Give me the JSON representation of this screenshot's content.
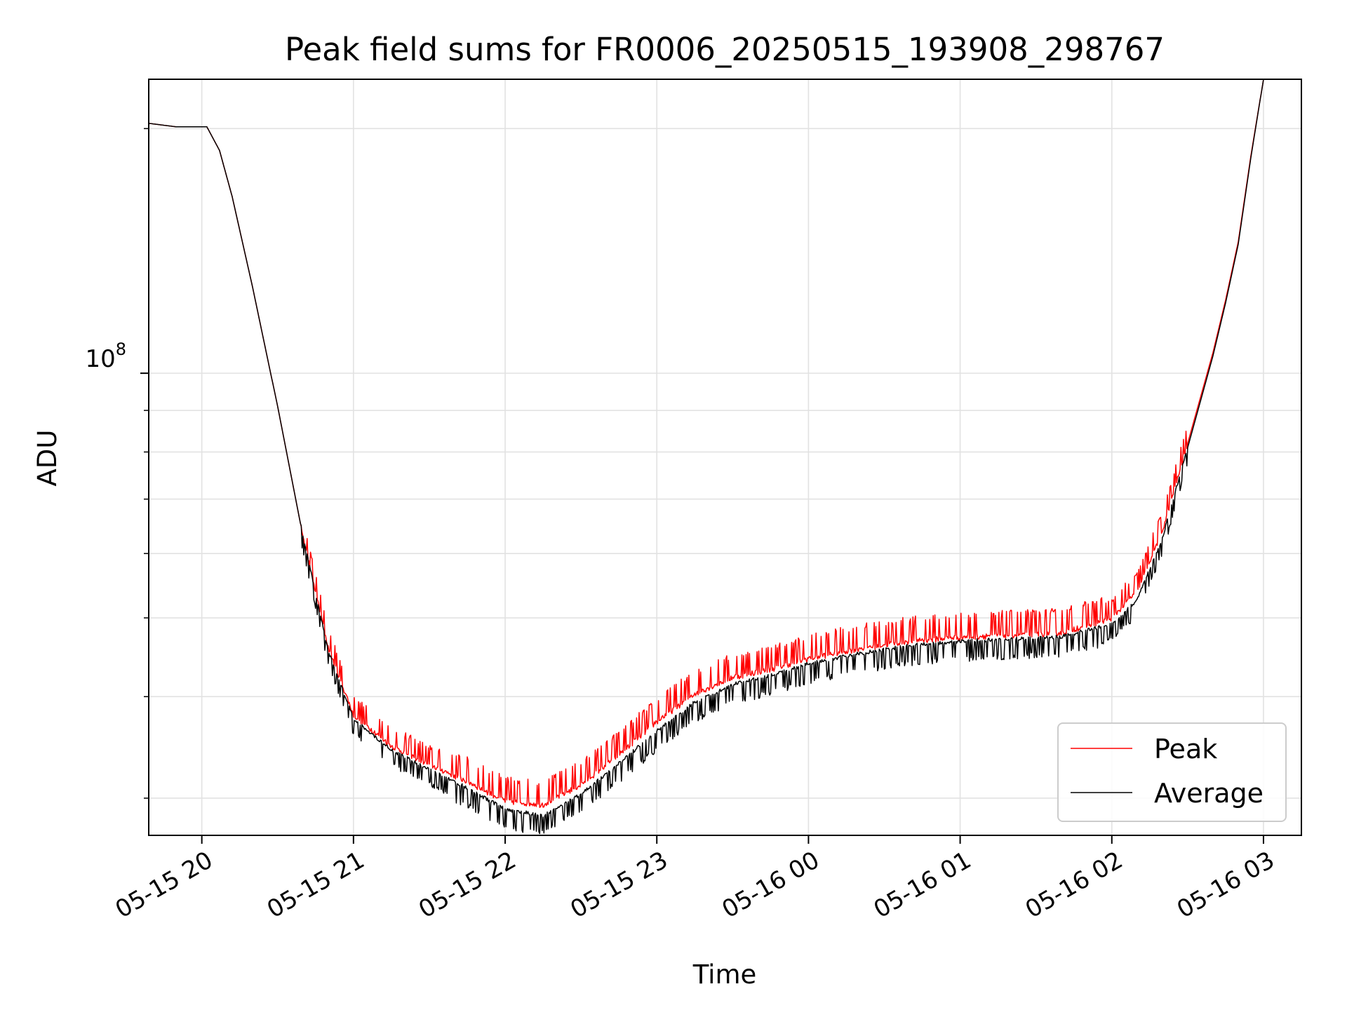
{
  "chart_data": {
    "type": "line",
    "title": "Peak field sums for FR0006_20250515_193908_298767",
    "xlabel": "Time",
    "ylabel": "ADU",
    "y_scale": "log",
    "y_tick_base": "10",
    "y_tick_exponent": "8",
    "y_major_tick": 100000000,
    "y_minor_ticks": [
      30000000,
      40000000,
      50000000,
      60000000,
      70000000,
      80000000,
      90000000,
      200000000
    ],
    "ylim": [
      27000000,
      230000000
    ],
    "xlim": [
      "2025-05-15 19:39",
      "2025-05-16 03:15"
    ],
    "x_ticks": [
      {
        "t": "2025-05-15 20:00",
        "label": "05-15 20"
      },
      {
        "t": "2025-05-15 21:00",
        "label": "05-15 21"
      },
      {
        "t": "2025-05-15 22:00",
        "label": "05-15 22"
      },
      {
        "t": "2025-05-15 23:00",
        "label": "05-15 23"
      },
      {
        "t": "2025-05-16 00:00",
        "label": "05-16 00"
      },
      {
        "t": "2025-05-16 01:00",
        "label": "05-16 01"
      },
      {
        "t": "2025-05-16 02:00",
        "label": "05-16 02"
      },
      {
        "t": "2025-05-16 03:00",
        "label": "05-16 03"
      }
    ],
    "grid": true,
    "legend_position": "lower right",
    "series": [
      {
        "name": "Peak",
        "color": "#ff0000",
        "noise": 0.05,
        "x": [
          "2025-05-15 19:39",
          "2025-05-15 19:50",
          "2025-05-15 20:02",
          "2025-05-15 20:07",
          "2025-05-15 20:12",
          "2025-05-15 20:20",
          "2025-05-15 20:30",
          "2025-05-15 20:40",
          "2025-05-15 20:50",
          "2025-05-15 21:00",
          "2025-05-15 21:15",
          "2025-05-15 21:30",
          "2025-05-15 21:45",
          "2025-05-15 22:00",
          "2025-05-15 22:15",
          "2025-05-15 22:30",
          "2025-05-15 22:45",
          "2025-05-15 23:00",
          "2025-05-15 23:15",
          "2025-05-15 23:30",
          "2025-05-15 23:45",
          "2025-05-16 00:00",
          "2025-05-16 00:20",
          "2025-05-16 00:40",
          "2025-05-16 01:00",
          "2025-05-16 01:20",
          "2025-05-16 01:40",
          "2025-05-16 02:00",
          "2025-05-16 02:10",
          "2025-05-16 02:20",
          "2025-05-16 02:30",
          "2025-05-16 02:40",
          "2025-05-16 02:45",
          "2025-05-16 02:50",
          "2025-05-16 02:55",
          "2025-05-16 03:00",
          "2025-05-16 03:15"
        ],
        "y": [
          203000000,
          201000000,
          201000000,
          188000000,
          165000000,
          128000000,
          91000000,
          63000000,
          46000000,
          38000000,
          34800000,
          33000000,
          31500000,
          29800000,
          29500000,
          31200000,
          34000000,
          37300000,
          40400000,
          42300000,
          43300000,
          44600000,
          45900000,
          46900000,
          47400000,
          47700000,
          48000000,
          50000000,
          54000000,
          64000000,
          82000000,
          106000000,
          123000000,
          145000000,
          185000000,
          230000000,
          230000000
        ]
      },
      {
        "name": "Average",
        "color": "#000000",
        "noise": 0.045,
        "x": [
          "2025-05-15 19:39",
          "2025-05-15 19:50",
          "2025-05-15 20:02",
          "2025-05-15 20:07",
          "2025-05-15 20:12",
          "2025-05-15 20:20",
          "2025-05-15 20:30",
          "2025-05-15 20:40",
          "2025-05-15 20:50",
          "2025-05-15 21:00",
          "2025-05-15 21:15",
          "2025-05-15 21:30",
          "2025-05-15 21:45",
          "2025-05-15 22:00",
          "2025-05-15 22:15",
          "2025-05-15 22:30",
          "2025-05-15 22:45",
          "2025-05-15 23:00",
          "2025-05-15 23:15",
          "2025-05-15 23:30",
          "2025-05-15 23:45",
          "2025-05-16 00:00",
          "2025-05-16 00:20",
          "2025-05-16 00:40",
          "2025-05-16 01:00",
          "2025-05-16 01:20",
          "2025-05-16 01:40",
          "2025-05-16 02:00",
          "2025-05-16 02:10",
          "2025-05-16 02:20",
          "2025-05-16 02:30",
          "2025-05-16 02:40",
          "2025-05-16 02:45",
          "2025-05-16 02:50",
          "2025-05-16 02:55",
          "2025-05-16 03:00",
          "2025-05-16 03:15"
        ],
        "y": [
          203000000,
          201000000,
          201000000,
          188000000,
          165000000,
          128000000,
          91000000,
          63000000,
          45500000,
          37500000,
          34300000,
          32500000,
          30800000,
          29000000,
          28500000,
          30300000,
          33000000,
          36200000,
          39300000,
          41300000,
          42400000,
          43800000,
          45100000,
          46100000,
          46700000,
          47000000,
          47300000,
          49000000,
          52500000,
          62500000,
          81000000,
          105000000,
          122000000,
          144000000,
          184000000,
          230000000,
          230000000
        ]
      }
    ]
  }
}
